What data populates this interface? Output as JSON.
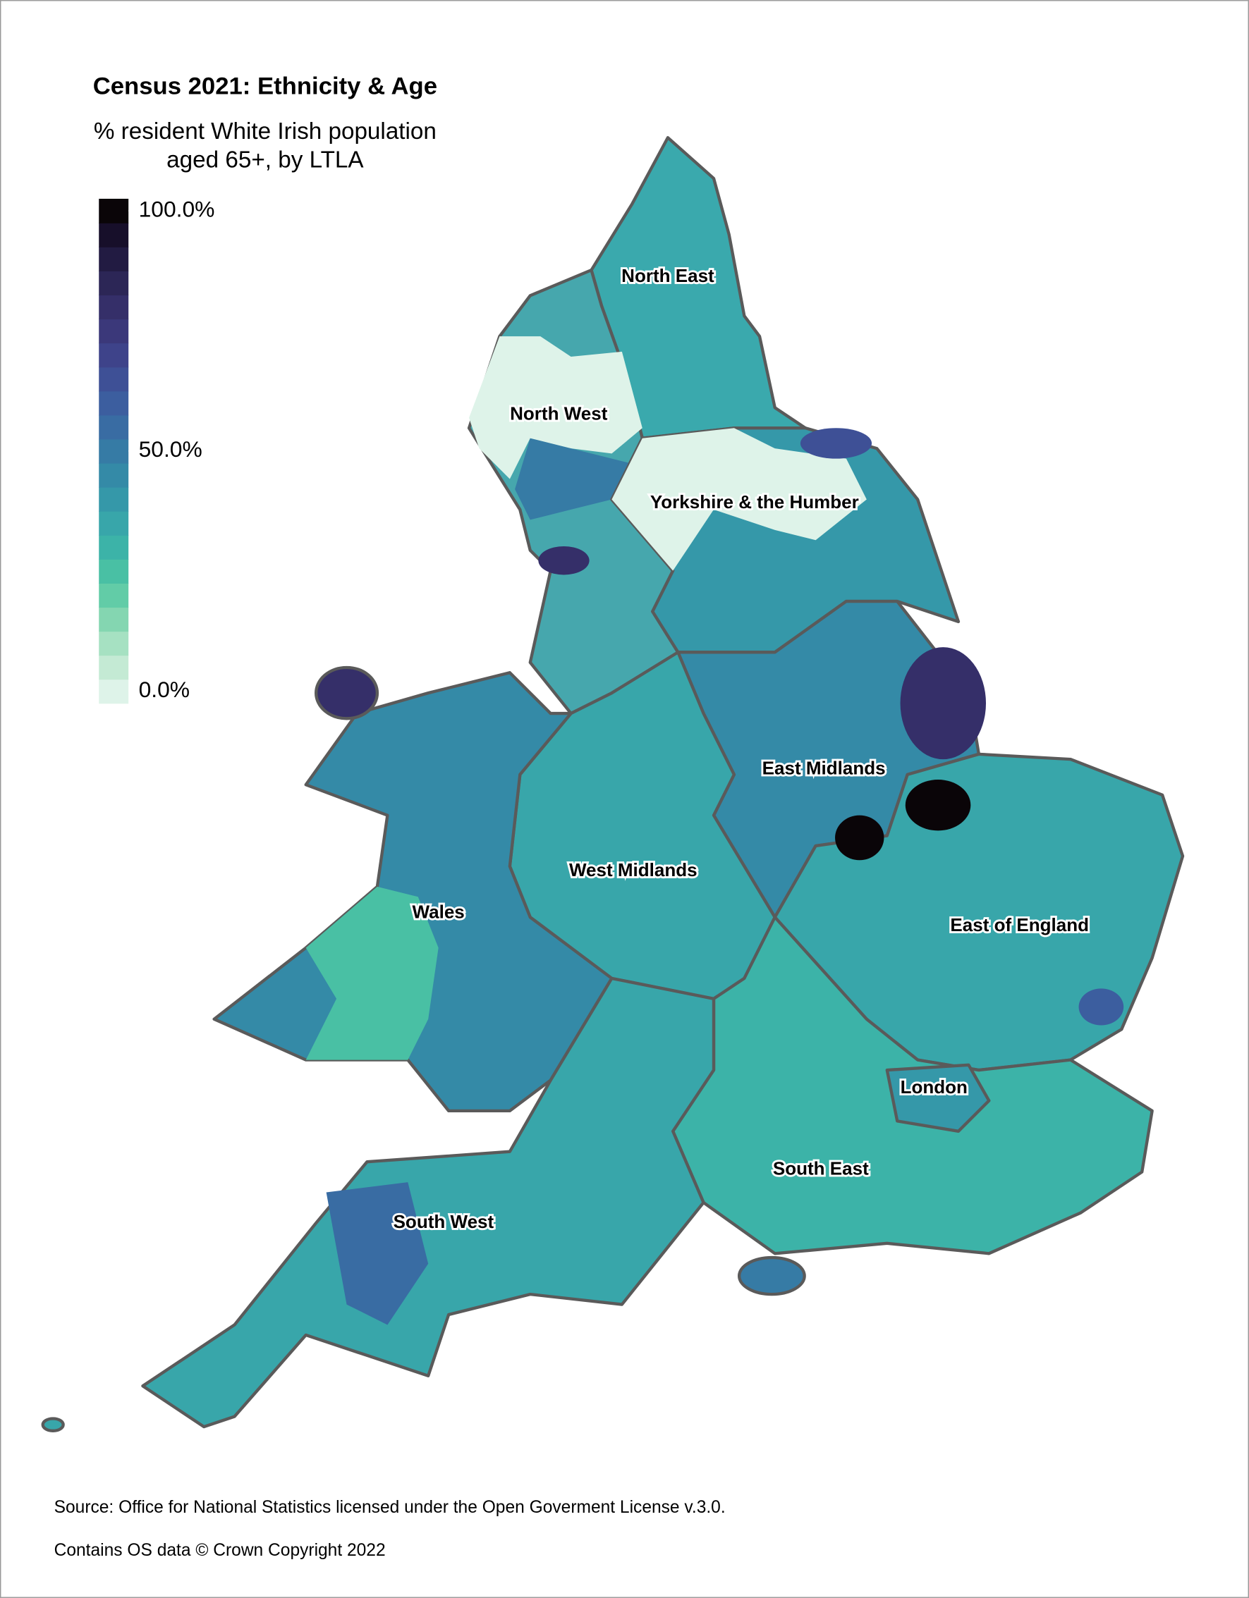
{
  "title": "Census 2021: Ethnicity & Age",
  "subtitle": [
    "% resident White Irish population",
    "aged 65+, by LTLA"
  ],
  "legend": {
    "lim": [
      0,
      100
    ],
    "ticks": [
      {
        "value": 0,
        "label": "0.0%"
      },
      {
        "value": 50,
        "label": "50.0%"
      },
      {
        "value": 100,
        "label": "100.0%"
      }
    ],
    "colors": [
      "#def3e9",
      "#c4ead4",
      "#a6e1c2",
      "#84d6b1",
      "#62cca7",
      "#49c0a4",
      "#3cb3a8",
      "#38a6aa",
      "#3598a9",
      "#348aa7",
      "#367ba5",
      "#396ca3",
      "#3c5e9f",
      "#3e5096",
      "#3e438a",
      "#3b387a",
      "#352f69",
      "#2c2656",
      "#221b42",
      "#170f2a",
      "#0a0508"
    ]
  },
  "regions": [
    "North East",
    "North West",
    "Yorkshire & the Humber",
    "East Midlands",
    "West Midlands",
    "Wales",
    "East of England",
    "London",
    "South East",
    "South West"
  ],
  "source": [
    "Source: Office for National Statistics licensed under the Open Goverment License v.3.0.",
    "Contains OS data © Crown Copyright 2022"
  ]
}
